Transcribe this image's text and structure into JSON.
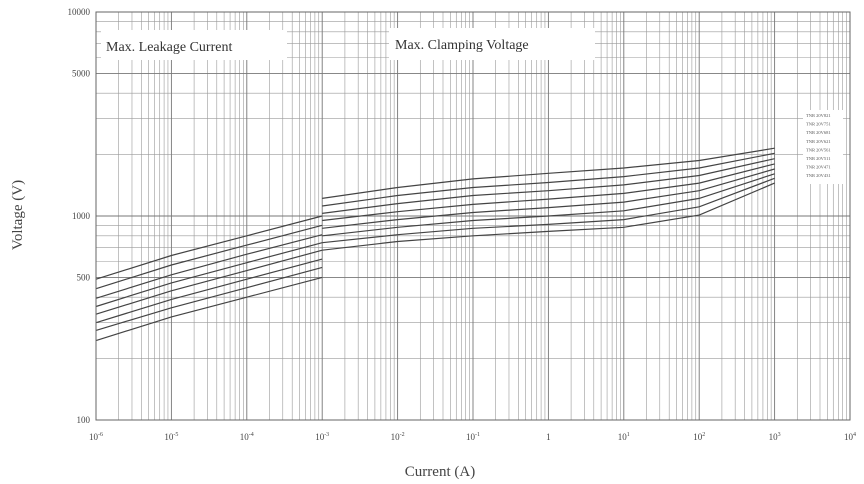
{
  "chart_data": {
    "type": "line",
    "xlabel": "Current  (A)",
    "ylabel": "Voltage  (V)",
    "x_scale": "log",
    "y_scale": "log",
    "xlim": [
      1e-06,
      10000.0
    ],
    "ylim": [
      100,
      10000
    ],
    "grid": true,
    "regions": [
      {
        "label": "Max. Leakage Current",
        "x_range": [
          1e-06,
          0.001
        ]
      },
      {
        "label": "Max. Clamping Voltage",
        "x_range": [
          0.001,
          10000.0
        ]
      }
    ],
    "x_tick_labels": [
      {
        "value": 1e-06,
        "base": "10",
        "exp": "-6"
      },
      {
        "value": 1e-05,
        "base": "10",
        "exp": "-5"
      },
      {
        "value": 0.0001,
        "base": "10",
        "exp": "-4"
      },
      {
        "value": 0.001,
        "base": "10",
        "exp": "-3"
      },
      {
        "value": 0.01,
        "base": "10",
        "exp": "-2"
      },
      {
        "value": 0.1,
        "base": "10",
        "exp": "-1"
      },
      {
        "value": 1,
        "base": "1",
        "exp": ""
      },
      {
        "value": 10,
        "base": "10",
        "exp": "1"
      },
      {
        "value": 100,
        "base": "10",
        "exp": "2"
      },
      {
        "value": 1000,
        "base": "10",
        "exp": "3"
      },
      {
        "value": 10000,
        "base": "10",
        "exp": "4"
      }
    ],
    "y_tick_labels": [
      {
        "value": 100,
        "label": "100"
      },
      {
        "value": 500,
        "label": "500"
      },
      {
        "value": 1000,
        "label": "1000"
      },
      {
        "value": 5000,
        "label": "5000"
      },
      {
        "value": 10000,
        "label": "10000"
      }
    ],
    "leakage_series": [
      {
        "x": [
          1e-06,
          1e-05,
          0.0001,
          0.001
        ],
        "y": [
          490,
          640,
          800,
          1000
        ]
      },
      {
        "x": [
          1e-06,
          1e-05,
          0.0001,
          0.001
        ],
        "y": [
          440,
          575,
          720,
          900
        ]
      },
      {
        "x": [
          1e-06,
          1e-05,
          0.0001,
          0.001
        ],
        "y": [
          395,
          515,
          650,
          810
        ]
      },
      {
        "x": [
          1e-06,
          1e-05,
          0.0001,
          0.001
        ],
        "y": [
          360,
          470,
          590,
          740
        ]
      },
      {
        "x": [
          1e-06,
          1e-05,
          0.0001,
          0.001
        ],
        "y": [
          330,
          430,
          540,
          680
        ]
      },
      {
        "x": [
          1e-06,
          1e-05,
          0.0001,
          0.001
        ],
        "y": [
          300,
          390,
          490,
          615
        ]
      },
      {
        "x": [
          1e-06,
          1e-05,
          0.0001,
          0.001
        ],
        "y": [
          275,
          355,
          445,
          560
        ]
      },
      {
        "x": [
          1e-06,
          1e-05,
          0.0001,
          0.001
        ],
        "y": [
          245,
          320,
          400,
          500
        ]
      }
    ],
    "clamping_series": [
      {
        "x": [
          0.001,
          0.01,
          0.1,
          1,
          10,
          100,
          1000
        ],
        "y": [
          1220,
          1380,
          1520,
          1620,
          1720,
          1870,
          2150
        ]
      },
      {
        "x": [
          0.001,
          0.01,
          0.1,
          1,
          10,
          100,
          1000
        ],
        "y": [
          1120,
          1260,
          1380,
          1460,
          1560,
          1720,
          2030
        ]
      },
      {
        "x": [
          0.001,
          0.01,
          0.1,
          1,
          10,
          100,
          1000
        ],
        "y": [
          1030,
          1150,
          1260,
          1330,
          1420,
          1580,
          1910
        ]
      },
      {
        "x": [
          0.001,
          0.01,
          0.1,
          1,
          10,
          100,
          1000
        ],
        "y": [
          950,
          1050,
          1140,
          1210,
          1290,
          1450,
          1800
        ]
      },
      {
        "x": [
          0.001,
          0.01,
          0.1,
          1,
          10,
          100,
          1000
        ],
        "y": [
          870,
          960,
          1040,
          1100,
          1170,
          1330,
          1700
        ]
      },
      {
        "x": [
          0.001,
          0.01,
          0.1,
          1,
          10,
          100,
          1000
        ],
        "y": [
          800,
          880,
          950,
          1000,
          1060,
          1220,
          1610
        ]
      },
      {
        "x": [
          0.001,
          0.01,
          0.1,
          1,
          10,
          100,
          1000
        ],
        "y": [
          740,
          810,
          870,
          910,
          960,
          1110,
          1530
        ]
      },
      {
        "x": [
          0.001,
          0.01,
          0.1,
          1,
          10,
          100,
          1000
        ],
        "y": [
          680,
          750,
          800,
          840,
          880,
          1010,
          1450
        ]
      }
    ],
    "legend_labels": [
      "TNR 20V821",
      "TNR 20V751",
      "TNR 20V681",
      "TNR 20V621",
      "TNR 20V561",
      "TNR 20V511",
      "TNR 20V471",
      "TNR 20V431"
    ]
  }
}
